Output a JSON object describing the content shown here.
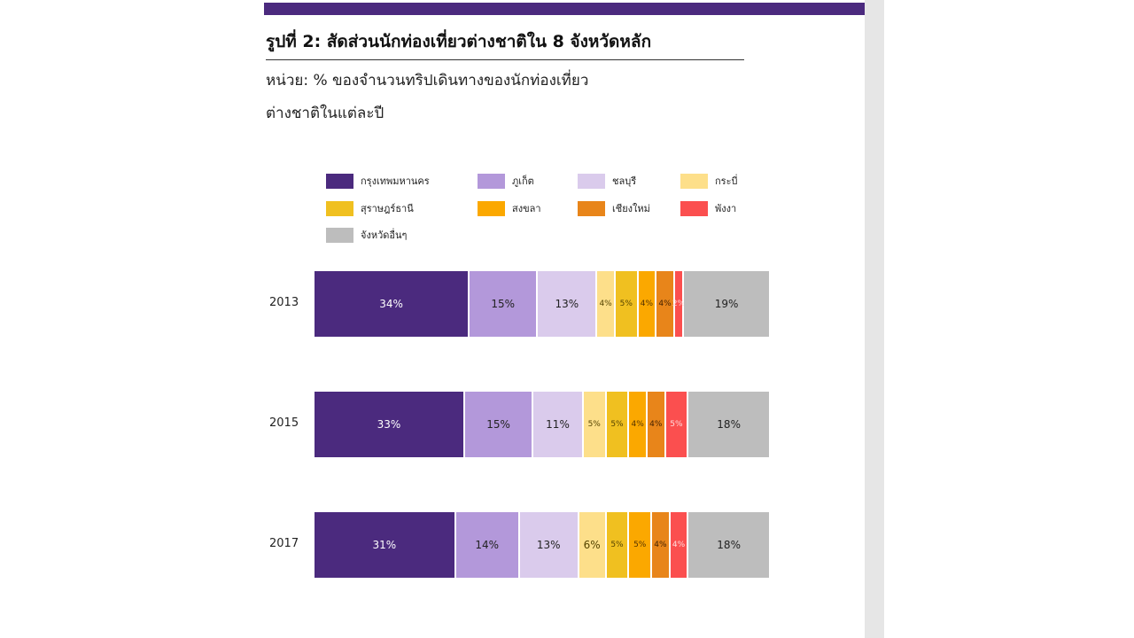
{
  "title": "รูปที่ 2: สัดส่วนนักท่องเที่ยวต่างชาติใน 8 จังหวัดหลัก",
  "subtitle_line1": "หน่วย: % ของจำนวนทริปเดินทางของนักท่องเที่ยว",
  "subtitle_line2": "ต่างชาติในแต่ละปี",
  "chart_data": {
    "type": "bar",
    "orientation": "horizontal-stacked-100",
    "title": "รูปที่ 2: สัดส่วนนักท่องเที่ยวต่างชาติใน 8 จังหวัดหลัก",
    "categories": [
      "2013",
      "2015",
      "2017"
    ],
    "legend_position": "top",
    "series": [
      {
        "name": "กรุงเทพมหานคร",
        "color": "#4b2a7e",
        "text": "#ffffff",
        "values": [
          34,
          33,
          31
        ]
      },
      {
        "name": "ภูเก็ต",
        "color": "#b398da",
        "text": "#222222",
        "values": [
          15,
          15,
          14
        ]
      },
      {
        "name": "ชลบุรี",
        "color": "#dacbec",
        "text": "#222222",
        "values": [
          13,
          11,
          13
        ]
      },
      {
        "name": "กระบี่",
        "color": "#fddf8a",
        "text": "#554400",
        "values": [
          4,
          5,
          6
        ]
      },
      {
        "name": "สุราษฎร์ธานี",
        "color": "#f0c020",
        "text": "#554400",
        "values": [
          5,
          5,
          5
        ]
      },
      {
        "name": "สงขลา",
        "color": "#fba800",
        "text": "#553300",
        "values": [
          4,
          4,
          5
        ]
      },
      {
        "name": "เชียงใหม่",
        "color": "#e8851a",
        "text": "#442200",
        "values": [
          4,
          4,
          4
        ]
      },
      {
        "name": "พังงา",
        "color": "#fb4f4f",
        "text": "#ffdddd",
        "values": [
          2,
          5,
          4
        ]
      },
      {
        "name": "จังหวัดอื่นๆ",
        "color": "#bdbdbd",
        "text": "#222222",
        "values": [
          19,
          18,
          18
        ]
      }
    ]
  }
}
